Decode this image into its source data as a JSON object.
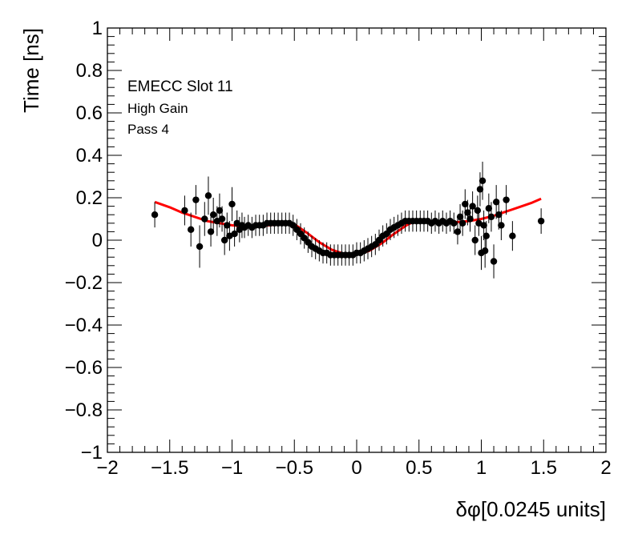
{
  "chart_data": {
    "type": "scatter",
    "title": "",
    "xlabel": "δφ[0.0245 units]",
    "ylabel": "Time [ns]",
    "xlim": [
      -2,
      2
    ],
    "ylim": [
      -1,
      1
    ],
    "x_ticks": [
      "−2",
      "−1.5",
      "−1",
      "−0.5",
      "0",
      "0.5",
      "1",
      "1.5",
      "2"
    ],
    "y_ticks": [
      "−1",
      "−0.8",
      "−0.6",
      "−0.4",
      "−0.2",
      "0",
      "0.2",
      "0.4",
      "0.6",
      "0.8",
      "1"
    ],
    "grid": false,
    "annotations": [
      "EMECC Slot 11",
      "High Gain",
      "Pass 4"
    ],
    "colors": {
      "points": "#000000",
      "fit": "#ff0000",
      "frame": "#000000"
    },
    "series": [
      {
        "kind": "points_with_errors",
        "x": [
          -1.62,
          -1.38,
          -1.33,
          -1.29,
          -1.26,
          -1.22,
          -1.19,
          -1.17,
          -1.15,
          -1.12,
          -1.1,
          -1.08,
          -1.06,
          -1.04,
          -1.02,
          -1.0,
          -0.98,
          -0.96,
          -0.94,
          -0.92,
          -0.9,
          -0.87,
          -0.84,
          -0.81,
          -0.78,
          -0.75,
          -0.72,
          -0.69,
          -0.66,
          -0.63,
          -0.6,
          -0.57,
          -0.54,
          -0.51,
          -0.48,
          -0.45,
          -0.42,
          -0.39,
          -0.36,
          -0.33,
          -0.3,
          -0.27,
          -0.24,
          -0.21,
          -0.18,
          -0.15,
          -0.12,
          -0.09,
          -0.06,
          -0.03,
          0.0,
          0.03,
          0.06,
          0.09,
          0.12,
          0.15,
          0.18,
          0.21,
          0.24,
          0.27,
          0.3,
          0.33,
          0.36,
          0.39,
          0.42,
          0.45,
          0.48,
          0.51,
          0.54,
          0.57,
          0.6,
          0.63,
          0.66,
          0.69,
          0.72,
          0.75,
          0.78,
          0.81,
          0.83,
          0.85,
          0.87,
          0.89,
          0.91,
          0.93,
          0.95,
          0.97,
          0.98,
          0.99,
          1.0,
          1.01,
          1.02,
          1.03,
          1.04,
          1.06,
          1.08,
          1.1,
          1.12,
          1.14,
          1.16,
          1.2,
          1.25,
          1.48
        ],
        "y": [
          0.12,
          0.14,
          0.05,
          0.19,
          -0.03,
          0.1,
          0.21,
          0.04,
          0.12,
          0.09,
          0.14,
          0.1,
          0.0,
          0.07,
          0.02,
          0.17,
          0.03,
          0.08,
          0.05,
          0.07,
          0.06,
          0.07,
          0.06,
          0.07,
          0.07,
          0.07,
          0.08,
          0.08,
          0.08,
          0.08,
          0.08,
          0.08,
          0.08,
          0.07,
          0.05,
          0.03,
          0.01,
          -0.01,
          -0.03,
          -0.04,
          -0.05,
          -0.06,
          -0.06,
          -0.07,
          -0.07,
          -0.07,
          -0.07,
          -0.07,
          -0.07,
          -0.07,
          -0.06,
          -0.06,
          -0.05,
          -0.04,
          -0.03,
          -0.02,
          0.0,
          0.02,
          0.03,
          0.05,
          0.06,
          0.07,
          0.08,
          0.09,
          0.09,
          0.09,
          0.09,
          0.09,
          0.09,
          0.09,
          0.08,
          0.09,
          0.08,
          0.09,
          0.08,
          0.09,
          0.08,
          0.04,
          0.11,
          0.08,
          0.17,
          0.13,
          0.1,
          0.16,
          0.0,
          0.14,
          0.08,
          0.24,
          -0.06,
          0.28,
          0.07,
          -0.05,
          0.02,
          0.15,
          0.11,
          -0.1,
          0.18,
          0.12,
          0.07,
          0.19,
          0.02,
          0.09
        ],
        "err": [
          0.06,
          0.07,
          0.08,
          0.07,
          0.1,
          0.08,
          0.09,
          0.07,
          0.08,
          0.07,
          0.08,
          0.06,
          0.07,
          0.06,
          0.07,
          0.08,
          0.06,
          0.06,
          0.06,
          0.06,
          0.05,
          0.05,
          0.05,
          0.05,
          0.05,
          0.05,
          0.05,
          0.05,
          0.05,
          0.05,
          0.05,
          0.05,
          0.05,
          0.05,
          0.05,
          0.05,
          0.05,
          0.05,
          0.05,
          0.05,
          0.05,
          0.05,
          0.05,
          0.05,
          0.05,
          0.05,
          0.05,
          0.05,
          0.05,
          0.05,
          0.05,
          0.05,
          0.05,
          0.05,
          0.05,
          0.05,
          0.05,
          0.05,
          0.05,
          0.05,
          0.05,
          0.05,
          0.05,
          0.05,
          0.05,
          0.05,
          0.05,
          0.05,
          0.05,
          0.05,
          0.05,
          0.05,
          0.05,
          0.05,
          0.05,
          0.05,
          0.05,
          0.06,
          0.06,
          0.06,
          0.07,
          0.06,
          0.06,
          0.07,
          0.07,
          0.07,
          0.06,
          0.08,
          0.08,
          0.09,
          0.07,
          0.08,
          0.07,
          0.07,
          0.07,
          0.08,
          0.08,
          0.07,
          0.07,
          0.07,
          0.07,
          0.06
        ]
      },
      {
        "kind": "fit_curve",
        "x": [
          -1.62,
          -1.5,
          -1.4,
          -1.3,
          -1.2,
          -1.1,
          -1.0,
          -0.9,
          -0.8,
          -0.7,
          -0.6,
          -0.55,
          -0.5,
          -0.45,
          -0.4,
          -0.3,
          -0.2,
          -0.1,
          -0.05,
          0.0,
          0.1,
          0.2,
          0.3,
          0.4,
          0.45,
          0.5,
          0.6,
          0.7,
          0.8,
          0.9,
          1.0,
          1.1,
          1.2,
          1.3,
          1.4,
          1.48
        ],
        "y": [
          0.18,
          0.155,
          0.13,
          0.11,
          0.09,
          0.08,
          0.07,
          0.065,
          0.065,
          0.07,
          0.075,
          0.077,
          0.075,
          0.055,
          0.035,
          -0.01,
          -0.045,
          -0.065,
          -0.07,
          -0.068,
          -0.05,
          -0.015,
          0.03,
          0.07,
          0.085,
          0.09,
          0.088,
          0.085,
          0.085,
          0.09,
          0.1,
          0.115,
          0.135,
          0.155,
          0.175,
          0.195
        ]
      }
    ]
  }
}
